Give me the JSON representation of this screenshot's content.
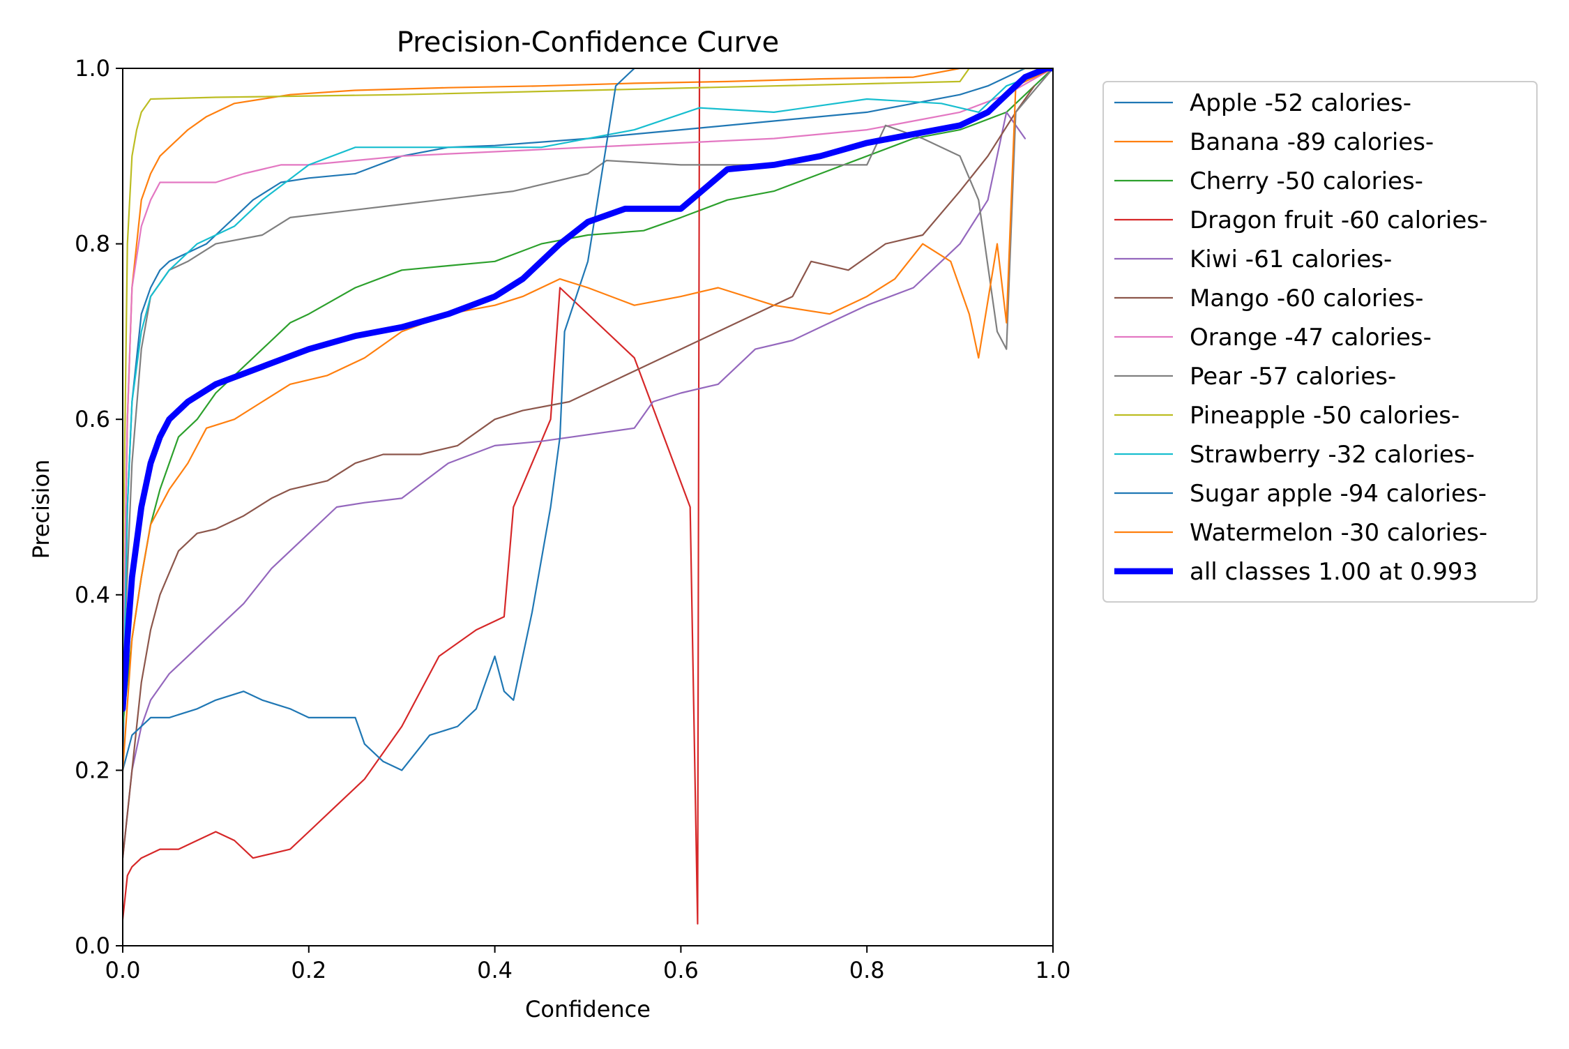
{
  "chart_data": {
    "type": "line",
    "title": "Precision-Confidence Curve",
    "xlabel": "Confidence",
    "ylabel": "Precision",
    "xlim": [
      0,
      1
    ],
    "ylim": [
      0,
      1
    ],
    "xticks": [
      "0.0",
      "0.2",
      "0.4",
      "0.6",
      "0.8",
      "1.0"
    ],
    "yticks": [
      "0.0",
      "0.2",
      "0.4",
      "0.6",
      "0.8",
      "1.0"
    ],
    "grid": false,
    "legend_position": "outside-right-top",
    "series": [
      {
        "name": "Apple -52 calories-",
        "color": "#1f77b4",
        "width": 1,
        "x": [
          0,
          0.005,
          0.01,
          0.02,
          0.03,
          0.04,
          0.05,
          0.07,
          0.09,
          0.1,
          0.12,
          0.14,
          0.17,
          0.2,
          0.25,
          0.3,
          0.35,
          0.4,
          0.5,
          0.6,
          0.7,
          0.8,
          0.85,
          0.9,
          0.93,
          0.95,
          0.97,
          1.0
        ],
        "y": [
          0.2,
          0.5,
          0.62,
          0.72,
          0.75,
          0.77,
          0.78,
          0.79,
          0.8,
          0.81,
          0.83,
          0.85,
          0.87,
          0.875,
          0.88,
          0.9,
          0.91,
          0.912,
          0.92,
          0.93,
          0.94,
          0.95,
          0.96,
          0.97,
          0.98,
          0.99,
          1.0,
          1.0
        ]
      },
      {
        "name": "Banana -89 calories-",
        "color": "#ff7f0e",
        "width": 1,
        "x": [
          0,
          0.005,
          0.01,
          0.015,
          0.02,
          0.03,
          0.04,
          0.05,
          0.07,
          0.09,
          0.12,
          0.15,
          0.18,
          0.25,
          0.35,
          0.45,
          0.55,
          0.65,
          0.75,
          0.85,
          0.9,
          1.0
        ],
        "y": [
          0.3,
          0.6,
          0.75,
          0.8,
          0.85,
          0.88,
          0.9,
          0.91,
          0.93,
          0.945,
          0.96,
          0.965,
          0.97,
          0.975,
          0.978,
          0.98,
          0.983,
          0.985,
          0.988,
          0.99,
          1.0,
          1.0
        ]
      },
      {
        "name": "Cherry -50 calories-",
        "color": "#2ca02c",
        "width": 1,
        "x": [
          0,
          0.01,
          0.02,
          0.03,
          0.04,
          0.05,
          0.06,
          0.08,
          0.1,
          0.12,
          0.15,
          0.18,
          0.2,
          0.25,
          0.3,
          0.35,
          0.4,
          0.45,
          0.5,
          0.56,
          0.6,
          0.65,
          0.7,
          0.75,
          0.8,
          0.85,
          0.9,
          0.95,
          1.0
        ],
        "y": [
          0.25,
          0.35,
          0.42,
          0.48,
          0.52,
          0.55,
          0.58,
          0.6,
          0.63,
          0.65,
          0.68,
          0.71,
          0.72,
          0.75,
          0.77,
          0.775,
          0.78,
          0.8,
          0.81,
          0.815,
          0.83,
          0.85,
          0.86,
          0.88,
          0.9,
          0.92,
          0.93,
          0.95,
          1.0
        ]
      },
      {
        "name": "Dragon fruit -60 calories-",
        "color": "#d62728",
        "width": 1,
        "x": [
          0,
          0.005,
          0.01,
          0.02,
          0.04,
          0.06,
          0.08,
          0.1,
          0.12,
          0.14,
          0.16,
          0.18,
          0.2,
          0.23,
          0.26,
          0.3,
          0.34,
          0.38,
          0.41,
          0.42,
          0.44,
          0.46,
          0.47,
          0.55,
          0.61,
          0.618,
          0.619,
          0.62
        ],
        "y": [
          0.03,
          0.08,
          0.09,
          0.1,
          0.11,
          0.11,
          0.12,
          0.13,
          0.12,
          0.1,
          0.105,
          0.11,
          0.13,
          0.16,
          0.19,
          0.25,
          0.33,
          0.36,
          0.375,
          0.5,
          0.55,
          0.6,
          0.75,
          0.67,
          0.5,
          0.025,
          0.5,
          1.0
        ]
      },
      {
        "name": "Kiwi -61 calories-",
        "color": "#9467bd",
        "width": 1,
        "x": [
          0,
          0.01,
          0.02,
          0.03,
          0.05,
          0.07,
          0.1,
          0.13,
          0.16,
          0.2,
          0.23,
          0.26,
          0.3,
          0.35,
          0.4,
          0.45,
          0.55,
          0.57,
          0.6,
          0.64,
          0.68,
          0.72,
          0.76,
          0.8,
          0.85,
          0.88,
          0.9,
          0.93,
          0.95,
          0.97
        ],
        "y": [
          0.1,
          0.2,
          0.25,
          0.28,
          0.31,
          0.33,
          0.36,
          0.39,
          0.43,
          0.47,
          0.5,
          0.505,
          0.51,
          0.55,
          0.57,
          0.575,
          0.59,
          0.62,
          0.63,
          0.64,
          0.68,
          0.69,
          0.71,
          0.73,
          0.75,
          0.78,
          0.8,
          0.85,
          0.95,
          0.92
        ]
      },
      {
        "name": "Mango -60 calories-",
        "color": "#8c564b",
        "width": 1,
        "x": [
          0,
          0.01,
          0.02,
          0.03,
          0.04,
          0.06,
          0.08,
          0.1,
          0.13,
          0.16,
          0.18,
          0.22,
          0.25,
          0.28,
          0.32,
          0.36,
          0.4,
          0.43,
          0.48,
          0.52,
          0.56,
          0.6,
          0.64,
          0.68,
          0.72,
          0.74,
          0.78,
          0.82,
          0.86,
          0.9,
          0.93,
          0.96,
          0.98
        ],
        "y": [
          0.1,
          0.2,
          0.3,
          0.36,
          0.4,
          0.45,
          0.47,
          0.475,
          0.49,
          0.51,
          0.52,
          0.53,
          0.55,
          0.56,
          0.56,
          0.57,
          0.6,
          0.61,
          0.62,
          0.64,
          0.66,
          0.68,
          0.7,
          0.72,
          0.74,
          0.78,
          0.77,
          0.8,
          0.81,
          0.86,
          0.9,
          0.95,
          0.98
        ]
      },
      {
        "name": "Orange -47 calories-",
        "color": "#e377c2",
        "width": 1,
        "x": [
          0,
          0.005,
          0.01,
          0.02,
          0.03,
          0.04,
          0.06,
          0.1,
          0.13,
          0.17,
          0.2,
          0.25,
          0.3,
          0.4,
          0.5,
          0.6,
          0.7,
          0.8,
          0.85,
          0.9,
          0.95,
          1.0
        ],
        "y": [
          0.3,
          0.6,
          0.75,
          0.82,
          0.85,
          0.87,
          0.87,
          0.87,
          0.88,
          0.89,
          0.89,
          0.895,
          0.9,
          0.905,
          0.91,
          0.915,
          0.92,
          0.93,
          0.94,
          0.95,
          0.97,
          1.0
        ]
      },
      {
        "name": "Pear -57 calories-",
        "color": "#7f7f7f",
        "width": 1,
        "x": [
          0,
          0.01,
          0.02,
          0.03,
          0.05,
          0.07,
          0.1,
          0.15,
          0.18,
          0.3,
          0.42,
          0.5,
          0.52,
          0.6,
          0.7,
          0.8,
          0.82,
          0.86,
          0.9,
          0.92,
          0.94,
          0.95,
          0.96,
          1.0
        ],
        "y": [
          0.3,
          0.55,
          0.68,
          0.74,
          0.77,
          0.78,
          0.8,
          0.81,
          0.83,
          0.845,
          0.86,
          0.88,
          0.895,
          0.89,
          0.89,
          0.89,
          0.935,
          0.92,
          0.9,
          0.85,
          0.7,
          0.68,
          0.95,
          1.0
        ]
      },
      {
        "name": "Pineapple -50 calories-",
        "color": "#bcbd22",
        "width": 1,
        "x": [
          0,
          0.005,
          0.01,
          0.015,
          0.02,
          0.03,
          0.1,
          0.3,
          0.5,
          0.7,
          0.9,
          0.91,
          1.0
        ],
        "y": [
          0.4,
          0.8,
          0.9,
          0.93,
          0.95,
          0.965,
          0.967,
          0.97,
          0.975,
          0.98,
          0.985,
          1.0,
          1.0
        ]
      },
      {
        "name": "Strawberry -32 calories-",
        "color": "#17becf",
        "width": 1,
        "x": [
          0,
          0.005,
          0.01,
          0.02,
          0.03,
          0.05,
          0.08,
          0.1,
          0.12,
          0.15,
          0.2,
          0.25,
          0.35,
          0.45,
          0.55,
          0.62,
          0.7,
          0.8,
          0.88,
          0.92,
          0.95,
          1.0
        ],
        "y": [
          0.25,
          0.5,
          0.62,
          0.7,
          0.74,
          0.77,
          0.8,
          0.81,
          0.82,
          0.85,
          0.89,
          0.91,
          0.91,
          0.91,
          0.93,
          0.955,
          0.95,
          0.965,
          0.96,
          0.95,
          0.98,
          1.0
        ]
      },
      {
        "name": "Sugar apple -94 calories-",
        "color": "#1f77b4",
        "width": 1,
        "x": [
          0,
          0.01,
          0.03,
          0.05,
          0.08,
          0.1,
          0.13,
          0.15,
          0.18,
          0.2,
          0.25,
          0.26,
          0.28,
          0.3,
          0.33,
          0.36,
          0.38,
          0.4,
          0.41,
          0.42,
          0.44,
          0.46,
          0.47,
          0.475,
          0.5,
          0.53,
          0.55
        ],
        "y": [
          0.2,
          0.24,
          0.26,
          0.26,
          0.27,
          0.28,
          0.29,
          0.28,
          0.27,
          0.26,
          0.26,
          0.23,
          0.21,
          0.2,
          0.24,
          0.25,
          0.27,
          0.33,
          0.29,
          0.28,
          0.38,
          0.5,
          0.58,
          0.7,
          0.78,
          0.98,
          1.0
        ]
      },
      {
        "name": "Watermelon -30 calories-",
        "color": "#ff7f0e",
        "width": 1,
        "x": [
          0,
          0.01,
          0.02,
          0.03,
          0.05,
          0.07,
          0.09,
          0.12,
          0.15,
          0.18,
          0.22,
          0.26,
          0.3,
          0.35,
          0.4,
          0.43,
          0.47,
          0.5,
          0.55,
          0.6,
          0.64,
          0.7,
          0.76,
          0.8,
          0.83,
          0.86,
          0.89,
          0.91,
          0.92,
          0.94,
          0.95,
          0.96,
          1.0
        ],
        "y": [
          0.2,
          0.35,
          0.42,
          0.48,
          0.52,
          0.55,
          0.59,
          0.6,
          0.62,
          0.64,
          0.65,
          0.67,
          0.7,
          0.72,
          0.73,
          0.74,
          0.76,
          0.75,
          0.73,
          0.74,
          0.75,
          0.73,
          0.72,
          0.74,
          0.76,
          0.8,
          0.78,
          0.72,
          0.67,
          0.8,
          0.71,
          0.98,
          1.0
        ]
      },
      {
        "name": "all classes 1.00 at 0.993",
        "color": "#0000ff",
        "width": 4,
        "x": [
          0,
          0.005,
          0.01,
          0.02,
          0.03,
          0.04,
          0.05,
          0.07,
          0.1,
          0.15,
          0.2,
          0.25,
          0.3,
          0.35,
          0.4,
          0.43,
          0.47,
          0.5,
          0.54,
          0.58,
          0.6,
          0.65,
          0.7,
          0.75,
          0.8,
          0.85,
          0.9,
          0.93,
          0.95,
          0.97,
          0.993,
          1.0
        ],
        "y": [
          0.27,
          0.35,
          0.42,
          0.5,
          0.55,
          0.58,
          0.6,
          0.62,
          0.64,
          0.66,
          0.68,
          0.695,
          0.705,
          0.72,
          0.74,
          0.76,
          0.8,
          0.825,
          0.84,
          0.84,
          0.84,
          0.885,
          0.89,
          0.9,
          0.915,
          0.925,
          0.935,
          0.95,
          0.97,
          0.99,
          1.0,
          1.0
        ]
      }
    ]
  }
}
